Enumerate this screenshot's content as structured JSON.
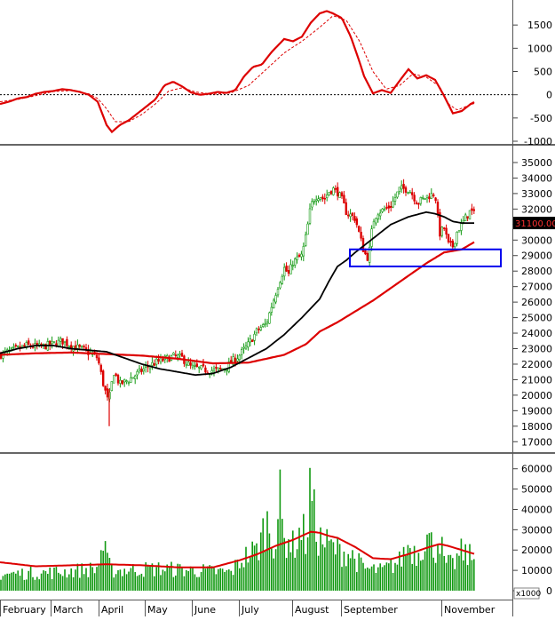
{
  "chart_data": {
    "type": "line",
    "x_months": [
      "February",
      "March",
      "April",
      "May",
      "June",
      "July",
      "August",
      "September",
      "November"
    ],
    "panels": [
      {
        "id": "oscillator",
        "ylim": [
          -1000,
          2000
        ],
        "yticks": [
          "1500",
          "1000",
          "500",
          "0",
          "-500",
          "-1000"
        ],
        "ytick_values": [
          1500,
          1000,
          500,
          0,
          -500,
          -1000
        ],
        "zero_line": 0,
        "series": [
          {
            "style": "solid",
            "color": "#dd0000",
            "x": [
              0,
              10,
              20,
              30,
              40,
              50,
              60,
              70,
              80,
              90,
              100,
              110,
              115,
              120,
              126,
              135,
              145,
              155,
              165,
              175,
              185,
              195,
              205,
              215,
              225,
              235,
              245,
              255,
              265,
              275,
              285,
              295,
              305,
              315,
              320,
              330,
              340,
              350,
              360,
              368,
              375,
              385,
              395,
              405,
              410,
              420,
              430,
              440,
              450,
              460,
              465,
              470,
              480,
              490,
              500,
              510,
              520,
              530,
              535
            ],
            "y": [
              -200,
              -150,
              -80,
              -50,
              20,
              60,
              80,
              120,
              100,
              60,
              0,
              -150,
              -400,
              -650,
              -800,
              -650,
              -550,
              -400,
              -250,
              -100,
              200,
              280,
              180,
              50,
              0,
              20,
              60,
              40,
              100,
              400,
              600,
              650,
              900,
              1100,
              1200,
              1150,
              1250,
              1550,
              1750,
              1800,
              1750,
              1650,
              1250,
              700,
              400,
              30,
              100,
              40,
              300,
              550,
              450,
              350,
              420,
              320,
              -20,
              -400,
              -350,
              -200,
              -150
            ]
          },
          {
            "style": "dashed",
            "color": "#dd0000",
            "x": [
              0,
              20,
              40,
              60,
              80,
              100,
              110,
              120,
              130,
              145,
              160,
              175,
              190,
              205,
              220,
              240,
              260,
              280,
              300,
              320,
              340,
              360,
              375,
              390,
              405,
              420,
              435,
              450,
              465,
              480,
              495,
              505,
              515,
              525,
              535
            ],
            "y": [
              -150,
              -100,
              -20,
              70,
              90,
              20,
              -80,
              -300,
              -580,
              -580,
              -420,
              -200,
              80,
              150,
              60,
              10,
              40,
              200,
              550,
              900,
              1150,
              1450,
              1700,
              1600,
              1150,
              500,
              120,
              200,
              450,
              380,
              180,
              -200,
              -330,
              -250,
              -180
            ]
          }
        ]
      },
      {
        "id": "price",
        "ylim": [
          16500,
          35800
        ],
        "yticks": [
          "35000",
          "34000",
          "33000",
          "32000",
          "31000",
          "30000",
          "29000",
          "28000",
          "27000",
          "26000",
          "25000",
          "24000",
          "23000",
          "22000",
          "21000",
          "20000",
          "19000",
          "18000",
          "17000"
        ],
        "ytick_values": [
          35000,
          34000,
          33000,
          32000,
          31000,
          30000,
          29000,
          28000,
          27000,
          26000,
          25000,
          24000,
          23000,
          22000,
          21000,
          20000,
          19000,
          18000,
          17000
        ],
        "last_value_label": "31100.00",
        "last_value": 31100,
        "candles": {
          "up_color": "#119911",
          "down_color": "#dd0000",
          "anchor_x": [
            0,
            15,
            30,
            45,
            60,
            70,
            80,
            95,
            110,
            116,
            122,
            128,
            135,
            145,
            155,
            165,
            175,
            185,
            195,
            205,
            215,
            225,
            235,
            245,
            255,
            262,
            270,
            280,
            290,
            300,
            305,
            310,
            315,
            320,
            325,
            330,
            340,
            345,
            350,
            355,
            360,
            365,
            370,
            375,
            380,
            385,
            390,
            400,
            410,
            415,
            420,
            425,
            430,
            440,
            450,
            460,
            465,
            470,
            480,
            490,
            495,
            500,
            505,
            510,
            515,
            520,
            525,
            530,
            535
          ],
          "anchor_y": [
            22600,
            22900,
            23200,
            23100,
            23300,
            23500,
            23200,
            22900,
            22400,
            20800,
            19500,
            21500,
            20700,
            21000,
            21400,
            21800,
            22100,
            22300,
            22500,
            22400,
            21800,
            21700,
            21600,
            21600,
            21800,
            22200,
            22600,
            23300,
            24200,
            24600,
            25600,
            26500,
            27400,
            28200,
            27800,
            28600,
            29000,
            30400,
            32200,
            32800,
            32900,
            32600,
            33100,
            33300,
            33100,
            32600,
            31800,
            31400,
            29200,
            28800,
            31200,
            31800,
            31900,
            32200,
            33300,
            33300,
            32900,
            32400,
            32800,
            33000,
            30400,
            30800,
            29700,
            29600,
            30600,
            31000,
            31500,
            31900,
            31600
          ]
        },
        "ma_black": {
          "color": "#000000",
          "x": [
            0,
            20,
            40,
            60,
            80,
            100,
            120,
            140,
            160,
            180,
            200,
            220,
            240,
            260,
            280,
            300,
            320,
            340,
            360,
            370,
            380,
            390,
            400,
            420,
            440,
            460,
            480,
            490,
            500,
            510,
            520,
            535
          ],
          "y": [
            22700,
            23000,
            23200,
            23200,
            23000,
            22900,
            22800,
            22400,
            22000,
            21700,
            21500,
            21300,
            21400,
            21800,
            22400,
            23000,
            23900,
            25000,
            26200,
            27300,
            28300,
            28700,
            29200,
            30100,
            31000,
            31500,
            31800,
            31700,
            31500,
            31200,
            31100,
            31100
          ]
        },
        "ma_red": {
          "color": "#dd0000",
          "x": [
            0,
            40,
            80,
            120,
            160,
            200,
            240,
            280,
            320,
            345,
            360,
            380,
            400,
            420,
            440,
            460,
            480,
            500,
            520,
            535
          ],
          "y": [
            22600,
            22700,
            22750,
            22650,
            22550,
            22350,
            22050,
            22100,
            22600,
            23300,
            24100,
            24700,
            25400,
            26100,
            26900,
            27700,
            28500,
            29200,
            29400,
            29900
          ]
        },
        "highlight_box": {
          "color": "#0000ee",
          "price_low": 28300,
          "price_high": 29400,
          "x_start": 394,
          "x_end": 564
        }
      },
      {
        "id": "volume",
        "ylim": [
          0,
          66000
        ],
        "yticks": [
          "60000",
          "50000",
          "40000",
          "30000",
          "20000",
          "10000",
          "0"
        ],
        "ytick_values": [
          60000,
          50000,
          40000,
          30000,
          20000,
          10000,
          0
        ],
        "unit_label": "x1000",
        "bar_color": "#119911",
        "avg_color": "#dd0000",
        "bar_anchor_x": [
          0,
          60,
          110,
          115,
          125,
          180,
          260,
          270,
          280,
          290,
          300,
          310,
          315,
          320,
          325,
          330,
          340,
          345,
          350,
          355,
          360,
          380,
          395,
          410,
          430,
          450,
          460,
          470,
          480,
          490,
          495,
          500,
          510,
          520,
          535
        ],
        "bar_anchor_y": [
          9000,
          10000,
          12000,
          25000,
          11000,
          12000,
          10000,
          16000,
          20000,
          22000,
          38000,
          26000,
          50000,
          26000,
          30000,
          24000,
          34000,
          26000,
          60000,
          34000,
          28000,
          22000,
          20000,
          12000,
          11000,
          16000,
          25000,
          20000,
          30000,
          22000,
          32000,
          15000,
          14000,
          21000,
          17000
        ],
        "avg_x": [
          0,
          40,
          80,
          120,
          160,
          200,
          240,
          270,
          290,
          310,
          330,
          350,
          360,
          370,
          380,
          400,
          420,
          440,
          460,
          480,
          495,
          505,
          520,
          535
        ],
        "avg_y": [
          14000,
          12000,
          12500,
          13000,
          12500,
          11500,
          11500,
          15000,
          18000,
          22000,
          25000,
          29000,
          28500,
          27000,
          26000,
          21500,
          16000,
          15500,
          18000,
          21000,
          23000,
          22000,
          20000,
          18000
        ]
      }
    ]
  }
}
